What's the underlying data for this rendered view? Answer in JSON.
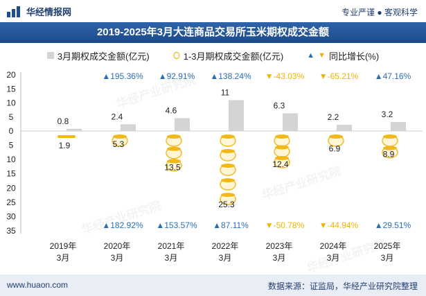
{
  "header": {
    "brand": "华经情报网",
    "slogan": "专业严谨 ● 客观科学"
  },
  "title": "2019-2025年3月大连商品交易所玉米期权成交金额",
  "legend": {
    "bar": "3月期权成交金额(亿元)",
    "coin": "1-3月期权成交金额(亿元)",
    "growth": "同比增长(%)"
  },
  "watermark": "华经产业研究院",
  "footer": {
    "site": "www.huaon.com",
    "source": "数据来源：证监局，华经产业研究院整理"
  },
  "colors": {
    "bar": "#d4d4d4",
    "coin": "#f2b817",
    "up": "#2a6fb5",
    "down": "#f0b400",
    "title_bg": "#1d4a8a"
  },
  "chart_data": {
    "type": "bar",
    "categories": [
      "2019年3月",
      "2020年3月",
      "2021年3月",
      "2022年3月",
      "2023年3月",
      "2024年3月",
      "2025年3月"
    ],
    "category_lines": [
      [
        "2019年",
        "3月"
      ],
      [
        "2020年",
        "3月"
      ],
      [
        "2021年",
        "3月"
      ],
      [
        "2022年",
        "3月"
      ],
      [
        "2023年",
        "3月"
      ],
      [
        "2024年",
        "3月"
      ],
      [
        "2025年",
        "3月"
      ]
    ],
    "series": [
      {
        "name": "3月期权成交金额(亿元)",
        "values": [
          0.8,
          2.4,
          4.6,
          11,
          6.3,
          2.2,
          3.2
        ],
        "labels": [
          "0.8",
          "2.4",
          "4.6",
          "11",
          "6.3",
          "2.2",
          "3.2"
        ],
        "direction": "up"
      },
      {
        "name": "1-3月期权成交金额(亿元)",
        "values": [
          1.9,
          5.3,
          13.5,
          25.3,
          12.4,
          6.9,
          8.9
        ],
        "labels": [
          "1.9",
          "5.3",
          "13.5",
          "25.3",
          "12.4",
          "6.9",
          "8.9"
        ],
        "direction": "down"
      }
    ],
    "growth_march": [
      "",
      "195.36%",
      "92.91%",
      "138.24%",
      "-43.03%",
      "-65.21%",
      "47.16%"
    ],
    "growth_q1": [
      "",
      "182.92%",
      "153.57%",
      "87.11%",
      "-50.78%",
      "-44.94%",
      "29.51%"
    ],
    "y_ticks_up": [
      20,
      15,
      10,
      5,
      0
    ],
    "y_ticks_down": [
      5,
      10,
      15,
      20,
      25,
      30,
      35
    ],
    "ylim_up": [
      0,
      20
    ],
    "ylim_down": [
      0,
      35
    ]
  }
}
